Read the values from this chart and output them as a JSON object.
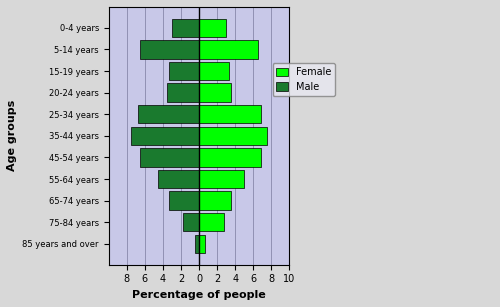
{
  "age_groups": [
    "0-4 years",
    "5-14 years",
    "15-19 years",
    "20-24 years",
    "25-34 years",
    "35-44 years",
    "45-54 years",
    "55-64 years",
    "65-74 years",
    "75-84 years",
    "85 years and over"
  ],
  "male": [
    3.0,
    6.5,
    3.3,
    3.5,
    6.8,
    7.5,
    6.5,
    4.5,
    3.3,
    1.8,
    0.5
  ],
  "female": [
    3.0,
    6.5,
    3.3,
    3.5,
    6.8,
    7.5,
    6.8,
    5.0,
    3.5,
    2.8,
    0.7
  ],
  "male_color": "#1a7a2e",
  "female_color": "#00ff00",
  "background_color": "#c8c8e8",
  "fig_facecolor": "#d8d8d8",
  "xlabel": "Percentage of people",
  "ylabel": "Age groups",
  "xlim": [
    -10,
    10
  ],
  "xticks": [
    -8,
    -6,
    -4,
    -2,
    0,
    2,
    4,
    6,
    8,
    10
  ],
  "xticklabels": [
    "8",
    "6",
    "4",
    "2",
    "0",
    "2",
    "4",
    "6",
    "8",
    "10"
  ]
}
